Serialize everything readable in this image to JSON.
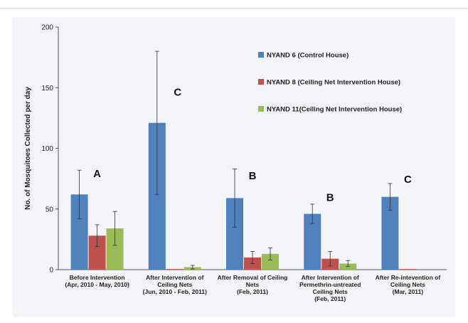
{
  "chart_data": {
    "type": "bar",
    "ylabel": "No. of Mosquitoes Collected per day",
    "ylim": [
      0,
      200
    ],
    "yticks": [
      0,
      50,
      100,
      150,
      200
    ],
    "categories": [
      [
        "Before Intervention",
        "(Apr, 2010 - May, 2010)"
      ],
      [
        "After Intervention of",
        "Ceiling Nets",
        "(Jun, 2010 - Feb, 2011)"
      ],
      [
        "After Removal of Ceiling",
        "Nets",
        "(Feb, 2011)"
      ],
      [
        "After Intervention of",
        "Permethrin-untreated",
        "Ceiling Nets",
        "(Feb, 2011)"
      ],
      [
        "After Re-intevention of",
        "Ceiling Nets",
        "(Mar, 2011)"
      ]
    ],
    "series": [
      {
        "name": "NYAND 6 (Control House)",
        "color": "#4f81bd",
        "values": [
          62,
          121,
          59,
          46,
          60
        ],
        "error": [
          20,
          59,
          24,
          8,
          11
        ]
      },
      {
        "name": "NYAND 8 (Ceiling Net Intervention House)",
        "color": "#c0504d",
        "values": [
          28,
          0.5,
          10,
          9,
          0.5
        ],
        "error": [
          9,
          0,
          5,
          6,
          0
        ]
      },
      {
        "name": "NYAND 11(Ceiling Net Intervention House)",
        "color": "#9bbb59",
        "values": [
          34,
          2,
          13,
          5,
          0
        ],
        "error": [
          14,
          1.5,
          5,
          2.5,
          0
        ]
      }
    ],
    "group_labels": [
      "A",
      "C",
      "B",
      "B",
      "C"
    ],
    "legend_position": "top-right",
    "grid": false
  }
}
